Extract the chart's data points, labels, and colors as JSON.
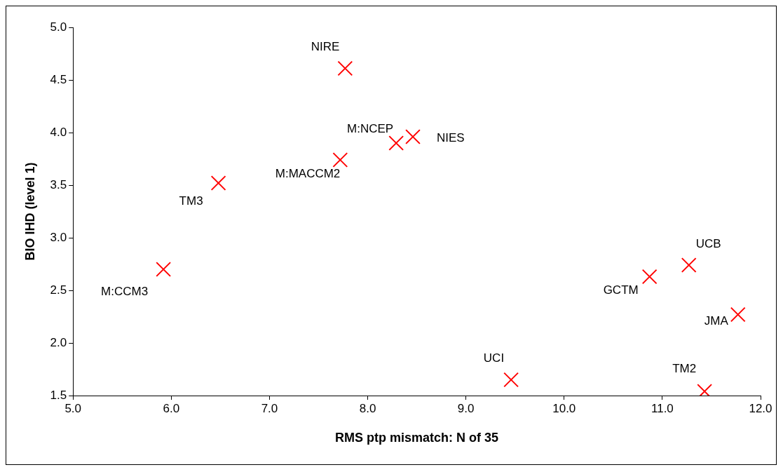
{
  "chart_data": {
    "type": "scatter",
    "xlabel": "RMS ptp mismatch: N of 35",
    "ylabel": "BIO IHD (level 1)",
    "x": [
      7.77,
      8.29,
      8.46,
      7.72,
      6.48,
      5.92,
      9.46,
      10.87,
      11.27,
      11.77,
      11.43
    ],
    "series": [
      {
        "color": "#ff0000",
        "values": [
          4.61,
          3.9,
          3.96,
          3.74,
          3.52,
          2.7,
          1.65,
          2.63,
          2.74,
          2.27,
          1.54
        ]
      }
    ],
    "xlim": [
      5,
      12
    ],
    "xticks": [
      {
        "value": 5,
        "label": "5.0"
      },
      {
        "value": 6,
        "label": "6.0"
      },
      {
        "value": 7,
        "label": "7.0"
      },
      {
        "value": 8,
        "label": "8.0"
      },
      {
        "value": 9,
        "label": "9.0"
      },
      {
        "value": 10,
        "label": "10.0"
      },
      {
        "value": 11,
        "label": "11.0"
      },
      {
        "value": 12,
        "label": "12.0"
      }
    ],
    "ylim": [
      1.5,
      5
    ],
    "yticks": [
      {
        "value": 1.5,
        "label": "1.5"
      },
      {
        "value": 2,
        "label": "2.0"
      },
      {
        "value": 2.5,
        "label": "2.5"
      },
      {
        "value": 3,
        "label": "3.0"
      },
      {
        "value": 3.5,
        "label": "3.5"
      },
      {
        "value": 4,
        "label": "4.0"
      },
      {
        "value": 4.5,
        "label": "4.5"
      },
      {
        "value": 5,
        "label": "5.0"
      }
    ],
    "annotations": [
      {
        "text": "NIRE",
        "x": 7.77,
        "y": 4.61
      },
      {
        "text": "M:NCEP",
        "x": 8.29,
        "y": 3.9
      },
      {
        "text": "NIES",
        "x": 8.46,
        "y": 3.96
      },
      {
        "text": "M:MACCM2",
        "x": 7.72,
        "y": 3.74
      },
      {
        "text": "TM3",
        "x": 6.48,
        "y": 3.52
      },
      {
        "text": "M:CCM3",
        "x": 5.92,
        "y": 2.7
      },
      {
        "text": "UCI",
        "x": 9.46,
        "y": 1.65
      },
      {
        "text": "GCTM",
        "x": 10.87,
        "y": 2.63
      },
      {
        "text": "UCB",
        "x": 11.27,
        "y": 2.74
      },
      {
        "text": "JMA",
        "x": 11.77,
        "y": 2.27
      },
      {
        "text": "TM2",
        "x": 11.43,
        "y": 1.54
      }
    ],
    "marker": "cross",
    "grid": false,
    "legend": false
  }
}
